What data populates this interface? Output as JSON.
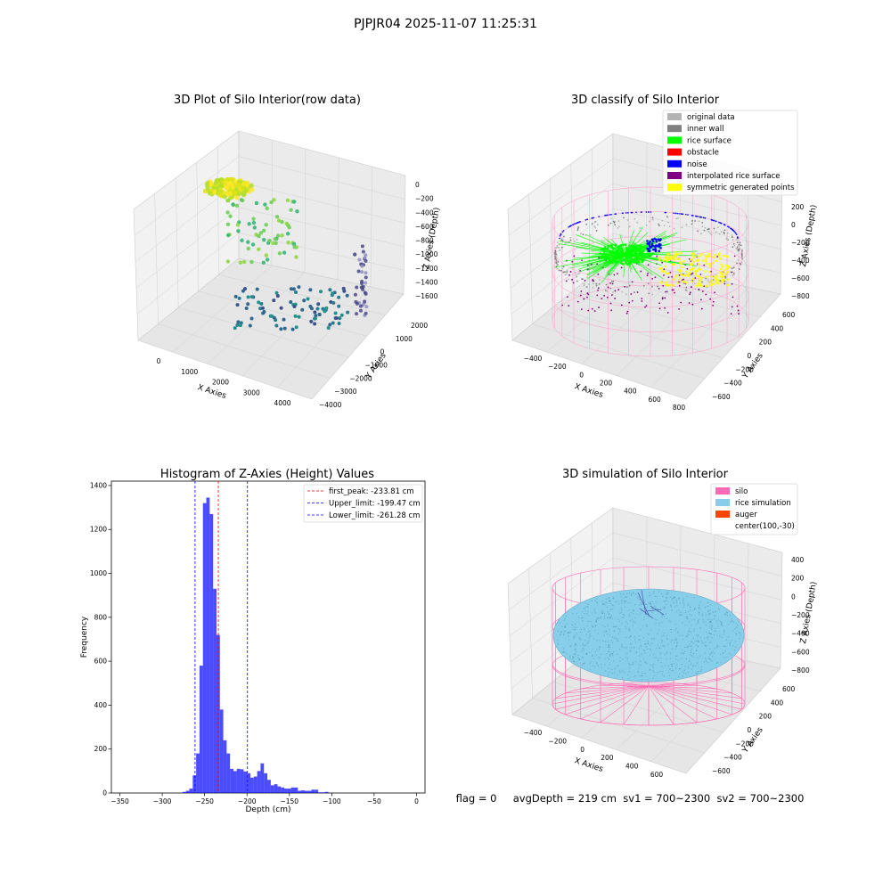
{
  "figure": {
    "suptitle": "PJPJR04 2025-11-07 11:25:31",
    "status_line": "flag = 0     avgDepth = 219 cm  sv1 = 700~2300  sv2 = 700~2300"
  },
  "chart_data": [
    {
      "type": "scatter3d",
      "title": "3D Plot of Silo Interior(row data)",
      "xlabel": "X Axies",
      "ylabel": "Y Axies",
      "zlabel": "Z Axies (Depth)",
      "x_ticks": [
        "0",
        "1000",
        "2000",
        "3000",
        "4000"
      ],
      "y_ticks": [
        "2000",
        "1000",
        "0",
        "−1000",
        "−2000",
        "−3000",
        "−4000"
      ],
      "z_ticks": [
        "0",
        "−200",
        "−400",
        "−600",
        "−800",
        "−1000",
        "−1200",
        "−1400",
        "−1600"
      ],
      "xlim": [
        -500,
        4500
      ],
      "ylim": [
        -4000,
        2500
      ],
      "zlim": [
        -1700,
        100
      ],
      "colormap": "viridis (by depth)",
      "grid": true
    },
    {
      "type": "scatter3d",
      "title": "3D classify of Silo Interior",
      "xlabel": "X Axies",
      "ylabel": "Y Axies",
      "zlabel": "Z Axies (Depth)",
      "x_ticks": [
        "−400",
        "−200",
        "0",
        "200",
        "400",
        "600",
        "800"
      ],
      "y_ticks": [
        "600",
        "400",
        "200",
        "0",
        "−200",
        "−400",
        "−600"
      ],
      "z_ticks": [
        "200",
        "0",
        "−200",
        "−400",
        "−600",
        "−800"
      ],
      "legend_position": "top-right",
      "legend": [
        {
          "label": "original data",
          "color": "#b3b3b3"
        },
        {
          "label": "inner wall",
          "color": "#808080"
        },
        {
          "label": "rice surface",
          "color": "#00ff00"
        },
        {
          "label": "obstacle",
          "color": "#ff0000"
        },
        {
          "label": "noise",
          "color": "#0000ff"
        },
        {
          "label": "interpolated rice surface",
          "color": "#800080"
        },
        {
          "label": "symmetric generated points",
          "color": "#ffff00"
        }
      ],
      "grid": true
    },
    {
      "type": "histogram",
      "title": "Histogram of Z-Axies (Height) Values",
      "xlabel": "Depth (cm)",
      "ylabel": "Frequency",
      "xlim": [
        -360,
        10
      ],
      "ylim": [
        0,
        1420
      ],
      "x_ticks": [
        -350,
        -300,
        -250,
        -200,
        -150,
        -100,
        -50,
        0
      ],
      "y_ticks": [
        0,
        200,
        400,
        600,
        800,
        1000,
        1200,
        1400
      ],
      "bin_width": 4,
      "bins": [
        [
          -276,
          5
        ],
        [
          -272,
          10
        ],
        [
          -268,
          20
        ],
        [
          -264,
          80
        ],
        [
          -260,
          180
        ],
        [
          -256,
          580
        ],
        [
          -252,
          1320
        ],
        [
          -248,
          1345
        ],
        [
          -244,
          1270
        ],
        [
          -240,
          930
        ],
        [
          -236,
          720
        ],
        [
          -232,
          380
        ],
        [
          -228,
          240
        ],
        [
          -224,
          180
        ],
        [
          -220,
          110
        ],
        [
          -216,
          100
        ],
        [
          -212,
          110
        ],
        [
          -208,
          108
        ],
        [
          -204,
          98
        ],
        [
          -200,
          90
        ],
        [
          -196,
          70
        ],
        [
          -192,
          75
        ],
        [
          -188,
          100
        ],
        [
          -184,
          135
        ],
        [
          -180,
          90
        ],
        [
          -176,
          60
        ],
        [
          -172,
          35
        ],
        [
          -168,
          40
        ],
        [
          -164,
          30
        ],
        [
          -160,
          25
        ],
        [
          -156,
          20
        ],
        [
          -152,
          20
        ],
        [
          -148,
          25
        ],
        [
          -144,
          25
        ],
        [
          -140,
          10
        ],
        [
          -136,
          12
        ],
        [
          -132,
          10
        ],
        [
          -128,
          10
        ],
        [
          -124,
          15
        ],
        [
          -120,
          15
        ],
        [
          -116,
          3
        ],
        [
          -112,
          3
        ],
        [
          -108,
          5
        ]
      ],
      "bar_color": "#0000ff",
      "lines": [
        {
          "label": "first_peak: -233.81 cm",
          "x": -233.81,
          "color": "#ff0000"
        },
        {
          "label": "Upper_limit: -199.47 cm",
          "x": -199.47,
          "color": "#0000ff"
        },
        {
          "label": "Lower_limit: -261.28 cm",
          "x": -261.28,
          "color": "#0000ff"
        }
      ],
      "legend_position": "top-right"
    },
    {
      "type": "surface3d",
      "title": "3D simulation of Silo Interior",
      "xlabel": "X Axies",
      "ylabel": "Y Axies",
      "zlabel": "Z Axies (Depth)",
      "x_ticks": [
        "−400",
        "−200",
        "0",
        "200",
        "400",
        "600"
      ],
      "y_ticks": [
        "600",
        "400",
        "200",
        "0",
        "−200",
        "−400",
        "−600"
      ],
      "z_ticks": [
        "400",
        "200",
        "0",
        "−200",
        "−400",
        "−600",
        "−800"
      ],
      "legend_position": "top-right",
      "legend": [
        {
          "label": "silo",
          "color": "#ff69b4"
        },
        {
          "label": "rice simulation",
          "color": "#87ceeb"
        },
        {
          "label": "auger",
          "color": "#ff4500"
        },
        {
          "label": "center(100,-30)",
          "color": "none"
        }
      ],
      "grid": true
    }
  ]
}
